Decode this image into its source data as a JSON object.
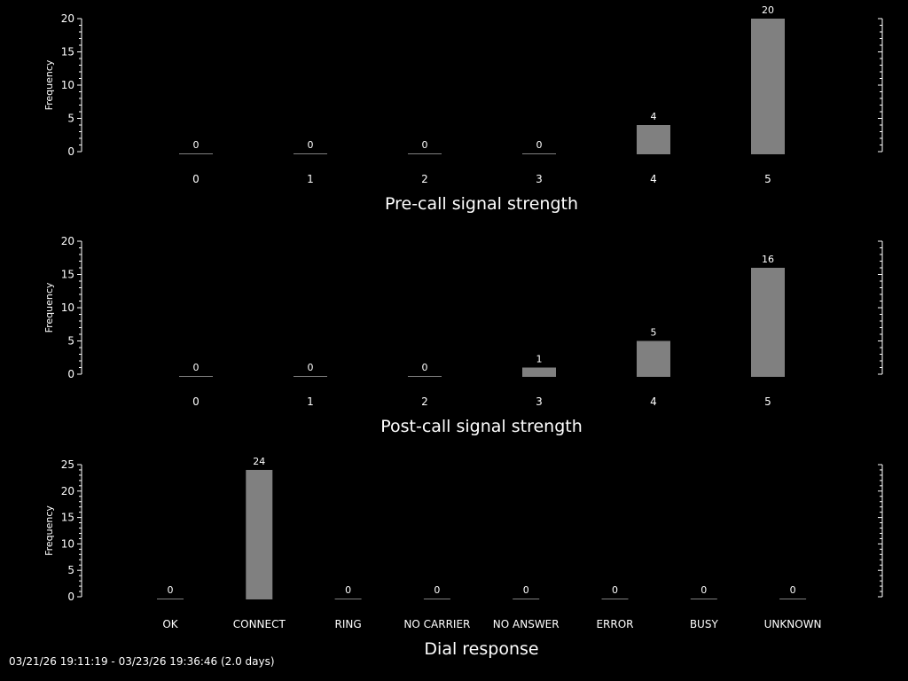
{
  "footer": "03/21/26 19:11:19 - 03/23/26 19:36:46 (2.0 days)",
  "colors": {
    "background": "#000000",
    "foreground": "#ffffff",
    "bar": "#808080"
  },
  "chart_data": [
    {
      "type": "bar",
      "title": "",
      "xlabel": "Pre-call signal strength",
      "ylabel": "Frequency",
      "categories": [
        "0",
        "1",
        "2",
        "3",
        "4",
        "5"
      ],
      "values": [
        0,
        0,
        0,
        0,
        4,
        20
      ],
      "ylim": [
        0,
        20
      ],
      "yticks": [
        0,
        5,
        10,
        15,
        20
      ]
    },
    {
      "type": "bar",
      "title": "",
      "xlabel": "Post-call signal strength",
      "ylabel": "Frequency",
      "categories": [
        "0",
        "1",
        "2",
        "3",
        "4",
        "5"
      ],
      "values": [
        0,
        0,
        0,
        1,
        5,
        16
      ],
      "ylim": [
        0,
        20
      ],
      "yticks": [
        0,
        5,
        10,
        15,
        20
      ]
    },
    {
      "type": "bar",
      "title": "",
      "xlabel": "Dial response",
      "ylabel": "Frequency",
      "categories": [
        "OK",
        "CONNECT",
        "RING",
        "NO CARRIER",
        "NO ANSWER",
        "ERROR",
        "BUSY",
        "UNKNOWN"
      ],
      "values": [
        0,
        24,
        0,
        0,
        0,
        0,
        0,
        0
      ],
      "ylim": [
        0,
        25
      ],
      "yticks": [
        0,
        5,
        10,
        15,
        20,
        25
      ]
    }
  ]
}
